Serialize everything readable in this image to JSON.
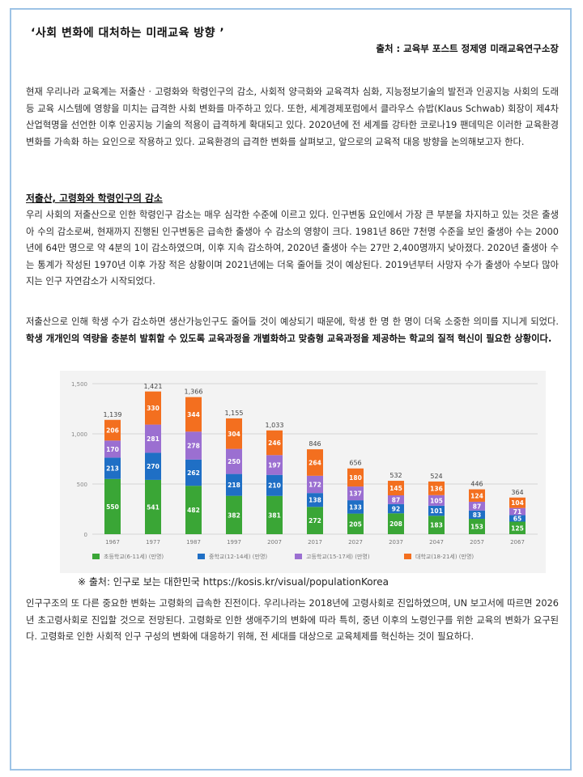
{
  "doc": {
    "title": "‘사회 변화에 대처하는 미래교육 방향 ’",
    "source": "출처 : 교육부 포스트 정제영 미래교육연구소장"
  },
  "paragraphs": {
    "intro": "현재 우리나라 교육계는 저출산 · 고령화와 학령인구의 감소, 사회적 양극화와 교육격차 심화, 지능정보기술의 발전과 인공지능 사회의 도래 등 교육 시스템에 영향을 미치는 급격한 사회 변화를 마주하고 있다. 또한, 세계경제포럼에서 클라우스 슈밥(Klaus Schwab) 회장이 제4차 산업혁명을 선언한 이후 인공지능 기술의 적용이 급격하게 확대되고 있다. 2020년에 전 세계를 강타한 코로나19 팬데믹은 이러한 교육환경 변화를 가속화 하는 요인으로 작용하고 있다. 교육환경의 급격한 변화를 살펴보고, 앞으로의 교육적 대응 방향을 논의해보고자 한다.",
    "heading": "저출산, 고령화와 학령인구의 감소",
    "p2": "우리 사회의 저출산으로 인한 학령인구 감소는 매우 심각한 수준에 이르고 있다. 인구변동 요인에서 가장 큰 부분을 차지하고 있는 것은 출생아 수의 감소로써, 현재까지 진행된 인구변동은 급속한 출생아 수 감소의 영향이 크다. 1981년 86만 7천명 수준을 보인 출생아 수는 2000년에 64만 명으로 약 4분의 1이 감소하였으며, 이후 지속 감소하여, 2020년 출생아 수는 27만 2,400명까지 낮아졌다. 2020년 출생아 수는 통계가 작성된 1970년 이후 가장 적은 상황이며 2021년에는 더욱 줄어들 것이 예상된다. 2019년부터 사망자 수가 출생아 수보다 많아지는 인구 자연감소가 시작되었다.",
    "p3_normal": "저출산으로 인해 학생 수가 감소하면 생산가능인구도 줄어들 것이 예상되기 때문에, 학생 한 명 한 명이 더욱 소중한 의미를 지니게 되었다. ",
    "p3_bold": "학생 개개인의 역량을 충분히 발휘할 수 있도록 교육과정을 개별화하고 맞춤형 교육과정을 제공하는 학교의 질적 혁신이 필요한 상황이다.",
    "caption": "※ 출처: 인구로 보는 대한민국 https://kosis.kr/visual/populationKorea",
    "p4": "인구구조의 또 다른 중요한 변화는 고령화의 급속한 진전이다. 우리나라는 2018년에 고령사회로 진입하였으며, UN 보고서에 따르면 2026년 초고령사회로 진입할 것으로 전망된다. 고령화로 인한 생애주기의 변화에 따라 특히, 중년 이후의 노령인구를 위한 교육의 변화가 요구된다. 고령화로 인한 사회적 인구 구성의 변화에 대응하기 위해, 전 세대를 대상으로 교육체제를 혁신하는 것이 필요하다."
  },
  "chart_data": {
    "type": "bar",
    "stacked": true,
    "categories": [
      "1967",
      "1977",
      "1987",
      "1997",
      "2007",
      "2017",
      "2027",
      "2037",
      "2047",
      "2057",
      "2067"
    ],
    "totals": [
      1139,
      1421,
      1366,
      1155,
      1033,
      846,
      656,
      532,
      524,
      446,
      364
    ],
    "series": [
      {
        "name": "초등학교(6-11세) (만명)",
        "color": "#3aa636",
        "values": [
          550,
          541,
          482,
          382,
          381,
          272,
          205,
          208,
          183,
          153,
          125
        ]
      },
      {
        "name": "중학교(12-14세) (만명)",
        "color": "#1f6fc5",
        "values": [
          213,
          270,
          262,
          218,
          210,
          138,
          133,
          92,
          101,
          83,
          65
        ]
      },
      {
        "name": "고등학교(15-17세) (만명)",
        "color": "#9b6fd1",
        "values": [
          170,
          281,
          278,
          250,
          197,
          172,
          137,
          87,
          105,
          87,
          71
        ]
      },
      {
        "name": "대학교(18-21세) (만명)",
        "color": "#f36f1f",
        "values": [
          206,
          330,
          344,
          304,
          246,
          264,
          180,
          145,
          136,
          124,
          104
        ]
      }
    ],
    "y_ticks": [
      "0",
      "500",
      "1,000",
      "1,500"
    ],
    "ylim": [
      0,
      1500
    ],
    "grid": true,
    "legend_position": "bottom",
    "background": "#f3f3f3"
  }
}
